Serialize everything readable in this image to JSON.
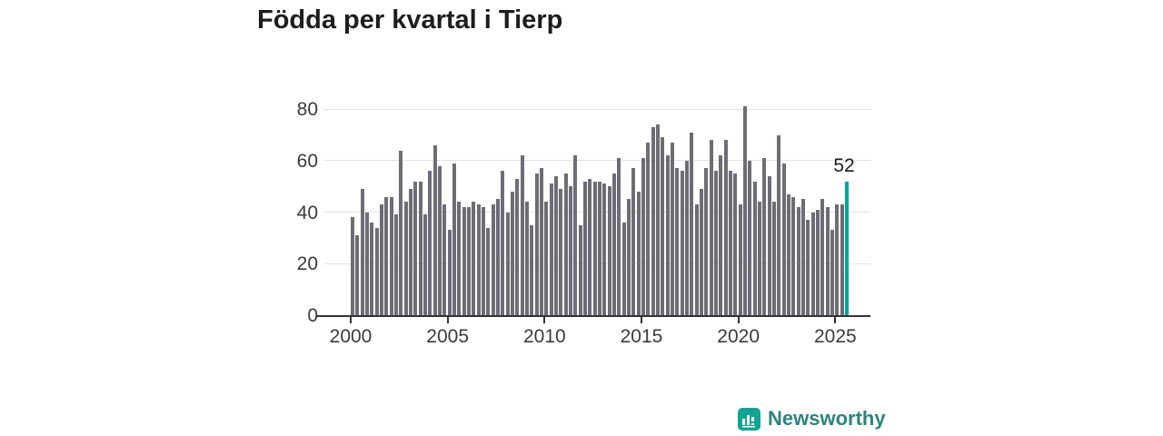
{
  "title": "Födda per kvartal i Tierp",
  "brand": {
    "name": "Newsworthy",
    "icon": "newsworthy-logo-icon",
    "icon_color": "#12a493",
    "text_color": "#2e837d"
  },
  "chart_data": {
    "type": "bar",
    "title": "Födda per kvartal i Tierp",
    "frequency": "quarterly",
    "x_start": "2000Q1",
    "x_end": "2025Q3",
    "values": [
      38,
      31,
      49,
      40,
      36,
      34,
      43,
      46,
      46,
      39,
      64,
      44,
      49,
      52,
      52,
      39,
      56,
      66,
      58,
      43,
      33,
      59,
      44,
      42,
      42,
      44,
      43,
      42,
      34,
      43,
      45,
      56,
      40,
      48,
      53,
      62,
      44,
      35,
      55,
      57,
      44,
      51,
      54,
      49,
      55,
      50,
      62,
      35,
      52,
      53,
      52,
      52,
      51,
      50,
      55,
      61,
      36,
      45,
      57,
      48,
      61,
      67,
      73,
      74,
      69,
      62,
      67,
      57,
      56,
      60,
      71,
      43,
      49,
      57,
      68,
      56,
      62,
      68,
      56,
      55,
      43,
      81,
      60,
      52,
      44,
      61,
      54,
      44,
      70,
      59,
      47,
      46,
      42,
      45,
      37,
      40,
      41,
      45,
      42,
      33,
      43,
      43,
      52
    ],
    "highlight": {
      "index": 102,
      "label": "52",
      "color": "#00a795"
    },
    "bar_color": "#6d6d76",
    "xtick_labels": [
      "2000",
      "2005",
      "2010",
      "2015",
      "2020",
      "2025"
    ],
    "xtick_quarter_indices": [
      0,
      20,
      40,
      60,
      80,
      100
    ],
    "ytick_labels": [
      "0",
      "20",
      "40",
      "60",
      "80"
    ],
    "ytick_values": [
      0,
      20,
      40,
      60,
      80
    ],
    "ylim": [
      0,
      85
    ],
    "grid": "horizontal",
    "legend": "none"
  }
}
